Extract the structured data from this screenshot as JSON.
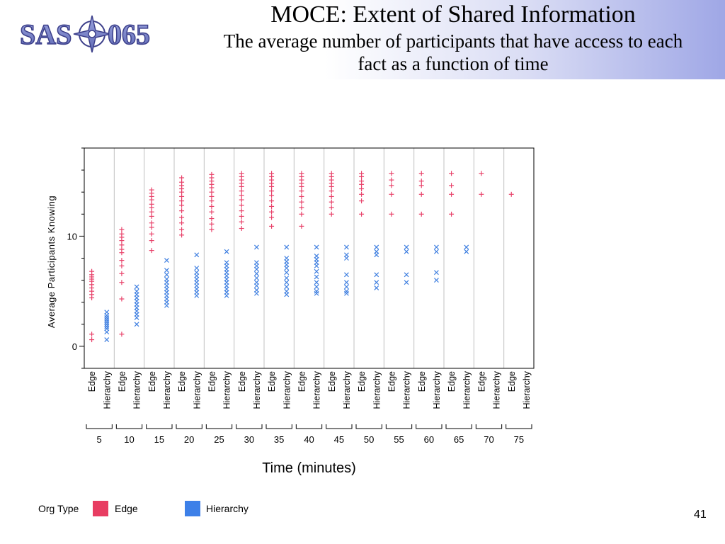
{
  "slide": {
    "title": "MOCE: Extent of Shared Information",
    "subtitle": "The average number of participants that have access to each fact as a function of time",
    "page_number": "41",
    "logo_text": "SAS-065"
  },
  "colors": {
    "edge": "#e8426a",
    "hierarchy": "#3f7fe0",
    "edge_swatch": "#e83d62",
    "hierarchy_swatch": "#3d80e8",
    "frame": "#000000",
    "separator": "#c0c0c0",
    "logo_fill": "#7b86c8",
    "logo_stroke": "#3c3f8a"
  },
  "legend": {
    "title": "Org Type",
    "items": [
      {
        "label": "Edge",
        "color": "#e83d62"
      },
      {
        "label": "Hierarchy",
        "color": "#3d80e8"
      }
    ]
  },
  "chart_data": {
    "type": "scatter",
    "title": "MOCE: Extent of Shared Information",
    "xlabel": "Time (minutes)",
    "ylabel": "Average Participants Knowing",
    "ylim": [
      -2,
      18
    ],
    "yticks": [
      0,
      10
    ],
    "grid": false,
    "legend_position": "bottom-left",
    "groups": [
      "5",
      "10",
      "15",
      "20",
      "25",
      "30",
      "35",
      "40",
      "45",
      "50",
      "55",
      "60",
      "65",
      "70",
      "75"
    ],
    "subgroups": [
      "Edge",
      "Hierarchy"
    ],
    "series": [
      {
        "name": "Edge",
        "marker": "+",
        "values": [
          [
            6.8,
            6.5,
            6.3,
            6.1,
            5.9,
            5.6,
            5.3,
            5.0,
            4.7,
            4.4,
            1.1,
            0.6
          ],
          [
            10.6,
            10.2,
            9.9,
            9.6,
            9.2,
            8.8,
            8.5,
            7.8,
            7.3,
            6.6,
            5.8,
            4.3,
            1.1
          ],
          [
            14.2,
            13.9,
            13.6,
            13.3,
            12.9,
            12.6,
            12.2,
            11.8,
            11.2,
            10.8,
            10.2,
            9.6,
            8.7
          ],
          [
            15.3,
            14.9,
            14.6,
            14.3,
            14.0,
            13.6,
            13.2,
            12.8,
            12.3,
            11.7,
            11.2,
            10.6,
            10.1
          ],
          [
            15.6,
            15.3,
            15.0,
            14.7,
            14.4,
            14.0,
            13.6,
            13.2,
            12.7,
            12.2,
            11.6,
            11.1,
            10.6
          ],
          [
            15.7,
            15.4,
            15.1,
            14.8,
            14.5,
            14.1,
            13.7,
            13.3,
            12.8,
            12.3,
            11.8,
            11.3,
            10.7
          ],
          [
            15.7,
            15.4,
            15.1,
            14.8,
            14.5,
            14.1,
            13.7,
            13.2,
            12.7,
            12.2,
            11.7,
            10.9
          ],
          [
            15.7,
            15.4,
            15.1,
            14.8,
            14.5,
            14.1,
            13.6,
            13.1,
            12.6,
            12.0,
            10.9
          ],
          [
            15.7,
            15.4,
            15.1,
            14.8,
            14.5,
            14.1,
            13.6,
            13.1,
            12.6,
            12.0
          ],
          [
            15.7,
            15.4,
            15.0,
            14.7,
            14.3,
            13.8,
            13.2,
            12.0
          ],
          [
            15.7,
            15.1,
            14.6,
            13.8,
            12.0
          ],
          [
            15.7,
            15.0,
            14.6,
            13.8,
            12.0
          ],
          [
            15.7,
            14.6,
            13.8,
            12.0
          ],
          [
            15.7,
            13.8
          ],
          [
            13.8
          ]
        ]
      },
      {
        "name": "Hierarchy",
        "marker": "x",
        "values": [
          [
            3.1,
            2.8,
            2.6,
            2.4,
            2.2,
            2.0,
            1.8,
            1.6,
            1.3,
            0.6
          ],
          [
            5.4,
            5.0,
            4.7,
            4.4,
            4.1,
            3.8,
            3.5,
            3.2,
            2.9,
            2.6,
            2.0
          ],
          [
            7.8,
            6.9,
            6.5,
            6.1,
            5.8,
            5.5,
            5.2,
            4.9,
            4.6,
            4.3,
            4.0,
            3.7
          ],
          [
            8.3,
            7.1,
            6.7,
            6.4,
            6.1,
            5.8,
            5.5,
            5.2,
            4.9,
            4.6
          ],
          [
            8.6,
            7.6,
            7.3,
            7.0,
            6.7,
            6.4,
            6.1,
            5.8,
            5.5,
            5.2,
            4.9,
            4.6
          ],
          [
            9.0,
            7.6,
            7.3,
            7.0,
            6.6,
            6.2,
            5.8,
            5.5,
            5.1,
            4.8
          ],
          [
            9.0,
            8.0,
            7.7,
            7.4,
            7.1,
            6.7,
            6.2,
            5.8,
            5.4,
            5.0,
            4.7
          ],
          [
            9.0,
            8.2,
            7.9,
            7.6,
            7.3,
            6.8,
            6.3,
            5.8,
            5.4,
            5.0,
            4.8
          ],
          [
            9.0,
            8.3,
            8.0,
            6.5,
            5.8,
            5.4,
            5.0,
            4.8
          ],
          [
            9.0,
            8.6,
            8.3,
            6.5,
            5.8,
            5.3
          ],
          [
            9.0,
            8.6,
            6.5,
            5.8
          ],
          [
            9.0,
            8.6,
            6.7,
            6.0
          ],
          [
            9.0,
            8.6
          ]
        ]
      }
    ]
  }
}
